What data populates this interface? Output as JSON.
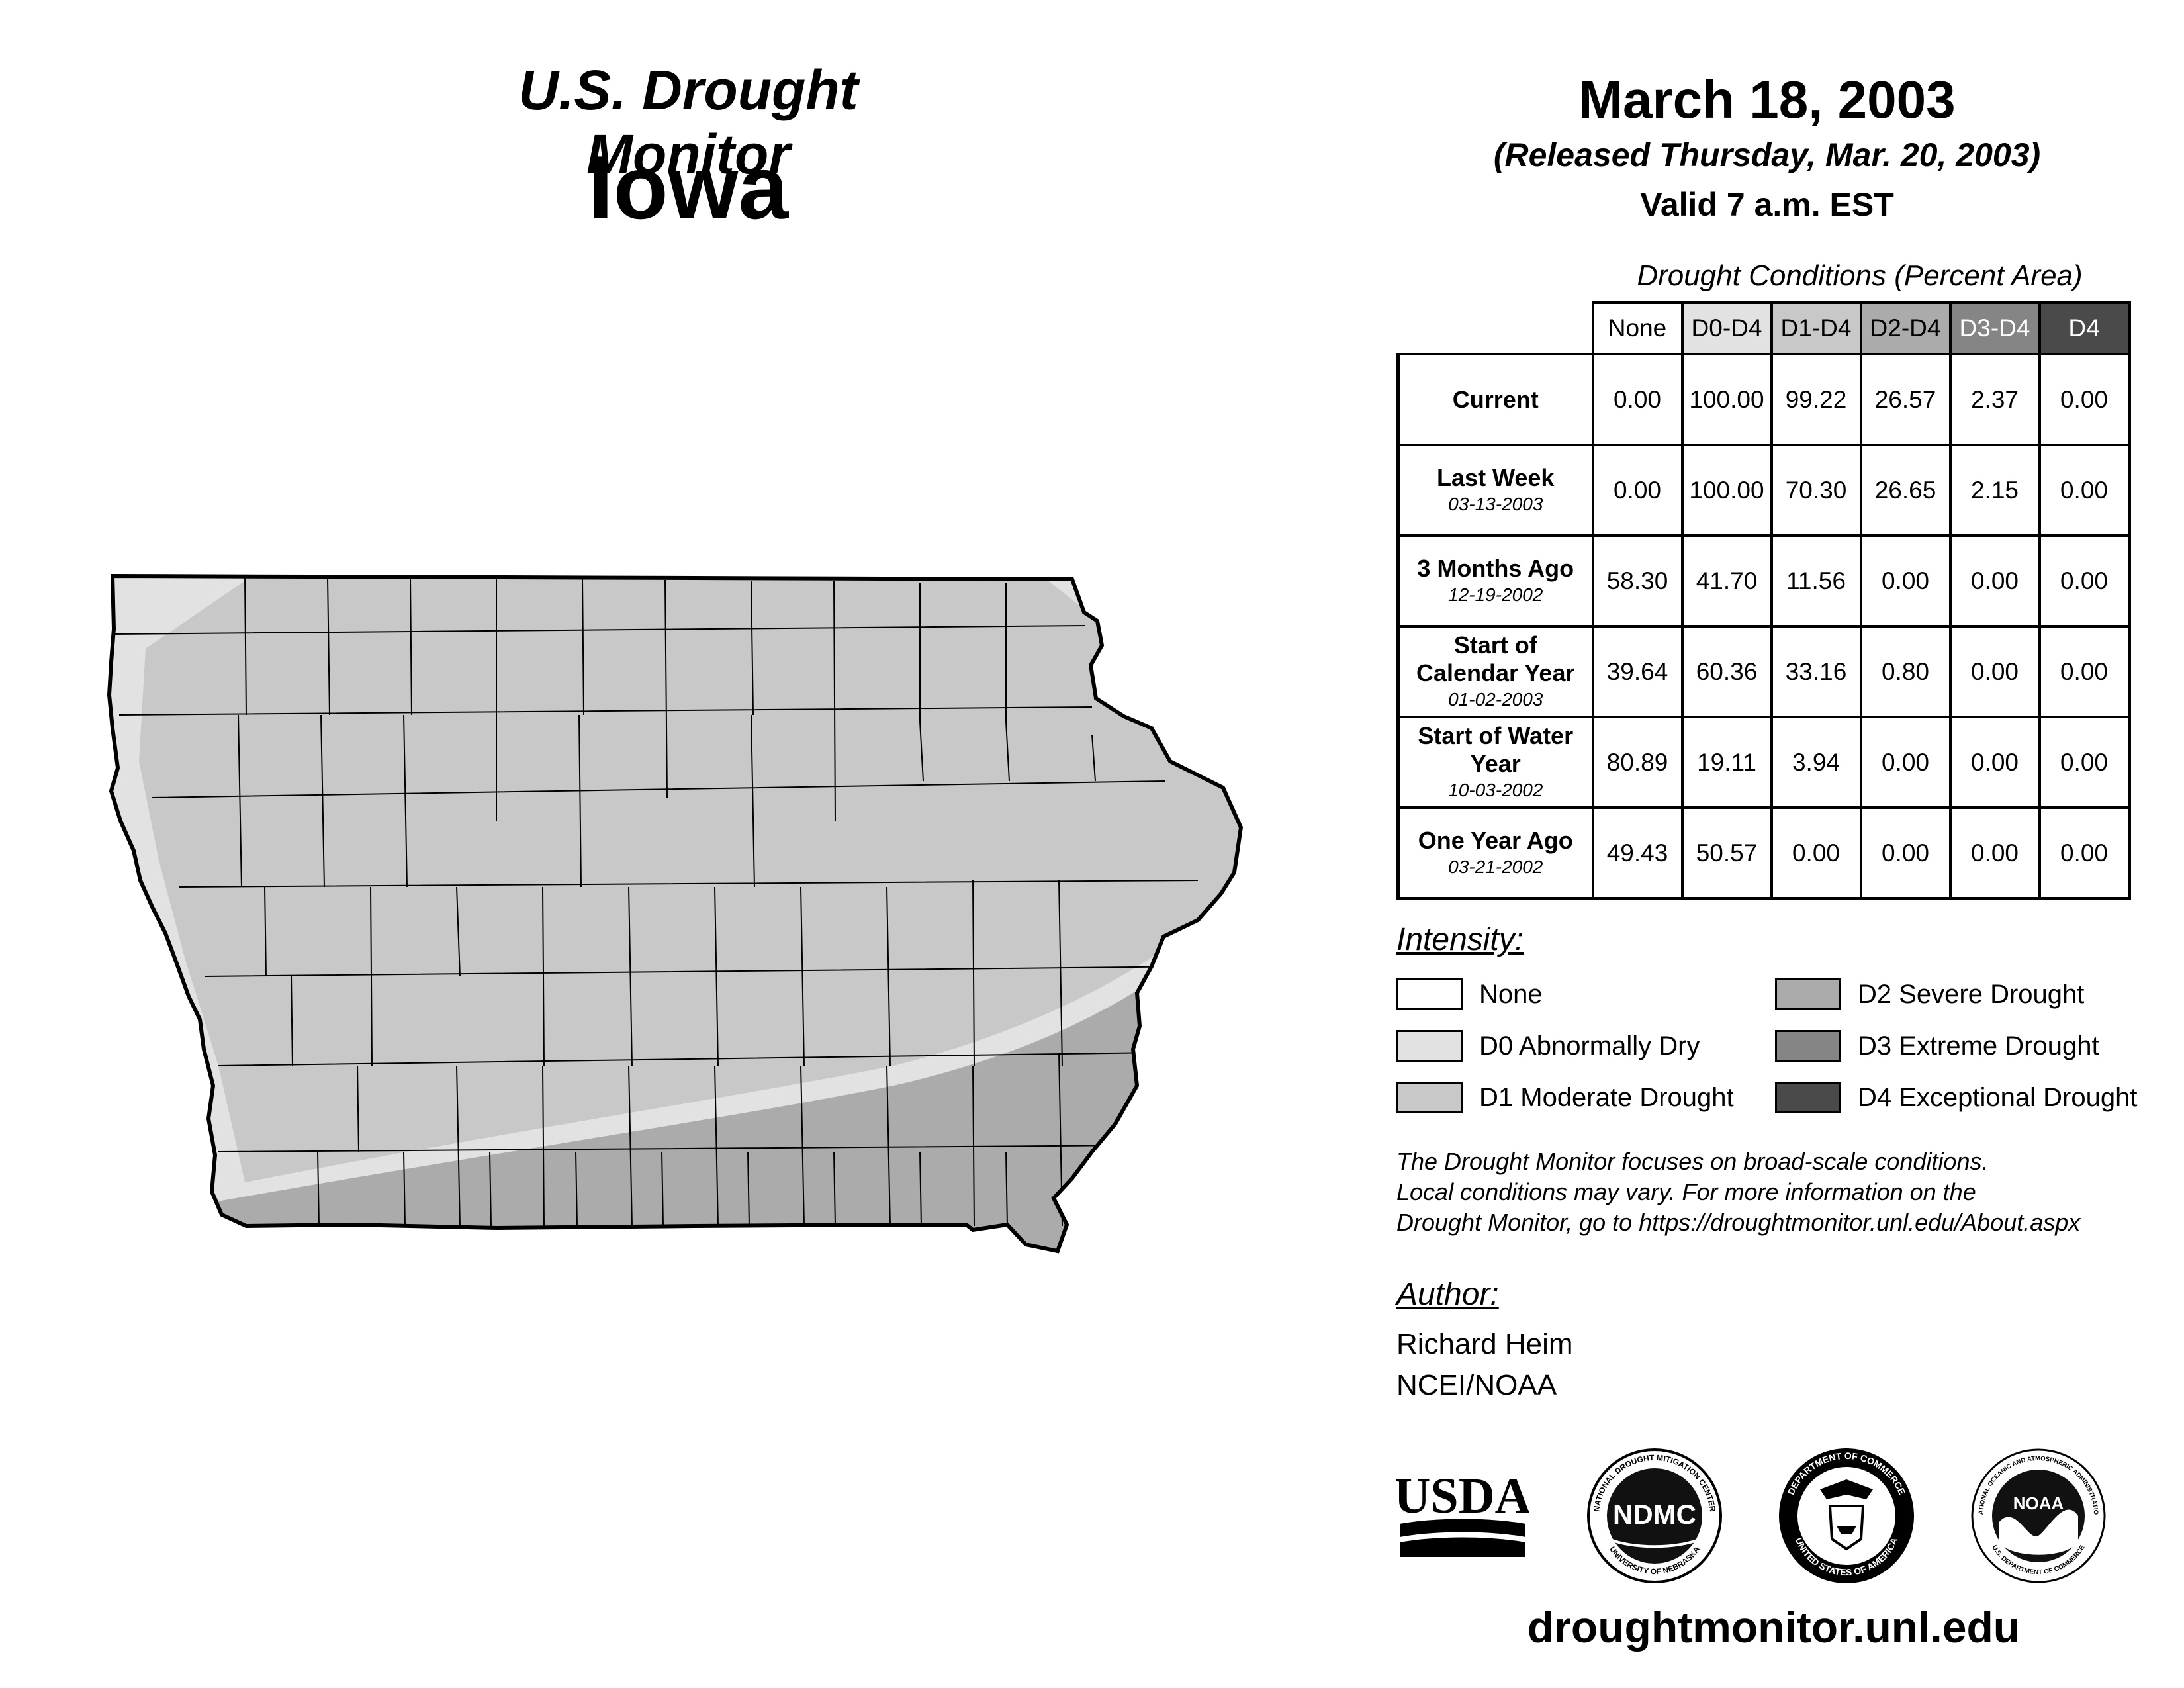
{
  "header": {
    "title": "U.S. Drought Monitor",
    "state": "Iowa",
    "date": "March 18, 2003",
    "released": "(Released Thursday, Mar. 20, 2003)",
    "valid": "Valid 7 a.m. EST"
  },
  "table": {
    "caption": "Drought Conditions (Percent Area)",
    "columns": [
      "None",
      "D0-D4",
      "D1-D4",
      "D2-D4",
      "D3-D4",
      "D4"
    ],
    "rows": [
      {
        "label": "Current",
        "date": "",
        "values": [
          "0.00",
          "100.00",
          "99.22",
          "26.57",
          "2.37",
          "0.00"
        ]
      },
      {
        "label": "Last Week",
        "date": "03-13-2003",
        "values": [
          "0.00",
          "100.00",
          "70.30",
          "26.65",
          "2.15",
          "0.00"
        ]
      },
      {
        "label": "3 Months Ago",
        "date": "12-19-2002",
        "values": [
          "58.30",
          "41.70",
          "11.56",
          "0.00",
          "0.00",
          "0.00"
        ]
      },
      {
        "label": "Start of Calendar Year",
        "date": "01-02-2003",
        "values": [
          "39.64",
          "60.36",
          "33.16",
          "0.80",
          "0.00",
          "0.00"
        ]
      },
      {
        "label": "Start of Water Year",
        "date": "10-03-2002",
        "values": [
          "80.89",
          "19.11",
          "3.94",
          "0.00",
          "0.00",
          "0.00"
        ]
      },
      {
        "label": "One Year Ago",
        "date": "03-21-2002",
        "values": [
          "49.43",
          "50.57",
          "0.00",
          "0.00",
          "0.00",
          "0.00"
        ]
      }
    ]
  },
  "legend": {
    "title": "Intensity:",
    "items": [
      {
        "label": "None",
        "color": "#ffffff"
      },
      {
        "label": "D0 Abnormally Dry",
        "color": "#e2e2e2"
      },
      {
        "label": "D1 Moderate Drought",
        "color": "#c8c8c8"
      },
      {
        "label": "D2 Severe Drought",
        "color": "#ababab"
      },
      {
        "label": "D3 Extreme Drought",
        "color": "#858585"
      },
      {
        "label": "D4 Exceptional Drought",
        "color": "#4a4a4a"
      }
    ]
  },
  "note": {
    "lines": [
      "The Drought Monitor focuses on broad-scale conditions.",
      "Local conditions may vary. For more information on the",
      "Drought Monitor, go to https://droughtmonitor.unl.edu/About.aspx"
    ]
  },
  "author": {
    "heading": "Author:",
    "name": "Richard Heim",
    "org": "NCEI/NOAA"
  },
  "logos": {
    "usda": "USDA",
    "ndmc": "NDMC",
    "ndmc_ring_top": "NATIONAL DROUGHT MITIGATION CENTER",
    "ndmc_ring_bottom": "UNIVERSITY OF NEBRASKA",
    "doc_ring_top": "DEPARTMENT OF COMMERCE",
    "doc_ring_bottom": "UNITED STATES OF AMERICA",
    "noaa": "NOAA",
    "noaa_ring_top": "NATIONAL OCEANIC AND ATMOSPHERIC ADMINISTRATION",
    "noaa_ring_bottom": "U.S. DEPARTMENT OF COMMERCE"
  },
  "footer": {
    "url": "droughtmonitor.unl.edu"
  }
}
